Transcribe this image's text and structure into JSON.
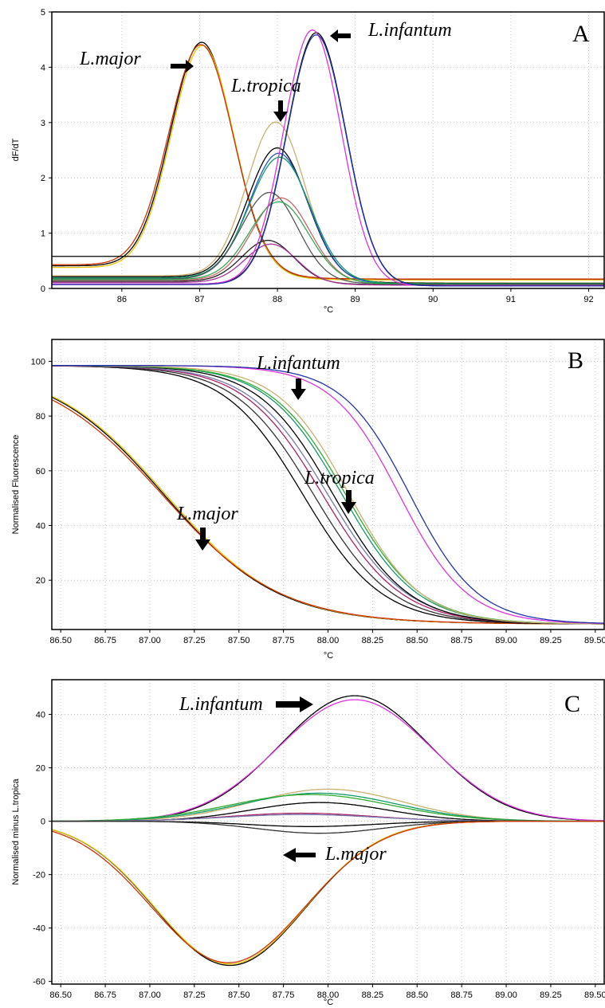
{
  "chart_data": [
    {
      "panel": "A",
      "type": "line",
      "panel_label": "A",
      "xlabel": "°C",
      "ylabel": "dF/dT",
      "xlim": [
        85.1,
        92.2
      ],
      "ylim": [
        0,
        5
      ],
      "xticks": [
        86,
        87,
        88,
        89,
        90,
        91,
        92
      ],
      "yticks": [
        0,
        1,
        2,
        3,
        4,
        5
      ],
      "grid": true,
      "threshold": 0.58,
      "series": [
        {
          "group": "major",
          "color": "#000000",
          "peak": 87.03,
          "height": 4.08,
          "sd": 0.4,
          "baseline": 0.38
        },
        {
          "group": "major",
          "color": "#e6c200",
          "peak": 87.04,
          "height": 4.05,
          "sd": 0.4,
          "baseline": 0.35
        },
        {
          "group": "major",
          "color": "#cc3300",
          "peak": 87.02,
          "height": 4.02,
          "sd": 0.41,
          "baseline": 0.4
        },
        {
          "group": "tropica",
          "color": "#c8b070",
          "peak": 87.98,
          "height": 2.8,
          "sd": 0.37,
          "baseline": 0.2
        },
        {
          "group": "tropica",
          "color": "#000000",
          "peak": 88.0,
          "height": 2.35,
          "sd": 0.38,
          "baseline": 0.18
        },
        {
          "group": "tropica",
          "color": "#2255cc",
          "peak": 88.02,
          "height": 2.28,
          "sd": 0.38,
          "baseline": 0.15
        },
        {
          "group": "tropica",
          "color": "#119966",
          "peak": 88.03,
          "height": 2.2,
          "sd": 0.39,
          "baseline": 0.16
        },
        {
          "group": "tropica",
          "color": "#555555",
          "peak": 87.9,
          "height": 1.58,
          "sd": 0.36,
          "baseline": 0.14
        },
        {
          "group": "tropica",
          "color": "#cc6666",
          "peak": 88.05,
          "height": 1.5,
          "sd": 0.37,
          "baseline": 0.12
        },
        {
          "group": "tropica",
          "color": "#33aa55",
          "peak": 88.02,
          "height": 1.42,
          "sd": 0.38,
          "baseline": 0.13
        },
        {
          "group": "tropica",
          "color": "#222222",
          "peak": 87.88,
          "height": 0.75,
          "sd": 0.33,
          "baseline": 0.1
        },
        {
          "group": "tropica",
          "color": "#aa3399",
          "peak": 87.92,
          "height": 0.7,
          "sd": 0.33,
          "baseline": 0.08
        },
        {
          "group": "infantum",
          "color": "#000000",
          "peak": 88.5,
          "height": 4.55,
          "sd": 0.38,
          "baseline": 0.05
        },
        {
          "group": "infantum",
          "color": "#dd33dd",
          "peak": 88.45,
          "height": 4.6,
          "sd": 0.37,
          "baseline": 0.05
        },
        {
          "group": "infantum",
          "color": "#2233aa",
          "peak": 88.5,
          "height": 4.52,
          "sd": 0.38,
          "baseline": 0.04
        }
      ],
      "annotations": [
        {
          "text": "L.major",
          "target": [
            87.0,
            4.08
          ]
        },
        {
          "text": "L.tropica",
          "target": [
            87.97,
            2.95
          ]
        },
        {
          "text": "L.infantum",
          "target": [
            88.68,
            4.6
          ]
        }
      ]
    },
    {
      "panel": "B",
      "type": "line",
      "panel_label": "B",
      "xlabel": "°C",
      "ylabel": "Normalised Fluorescence",
      "xlim": [
        86.45,
        89.55
      ],
      "ylim": [
        2,
        108
      ],
      "xticks": [
        86.5,
        86.75,
        87.0,
        87.25,
        87.5,
        87.75,
        88.0,
        88.25,
        88.5,
        88.75,
        89.0,
        89.25,
        89.5
      ],
      "yticks": [
        20,
        40,
        60,
        80,
        100
      ],
      "grid": true,
      "series": [
        {
          "group": "major",
          "color": "#000000",
          "mid": 87.08,
          "k": 0.32
        },
        {
          "group": "major",
          "color": "#e6c200",
          "mid": 87.09,
          "k": 0.32
        },
        {
          "group": "major",
          "color": "#cc3300",
          "mid": 87.07,
          "k": 0.33
        },
        {
          "group": "tropica",
          "color": "#000000",
          "mid": 87.86,
          "k": 0.22
        },
        {
          "group": "tropica",
          "color": "#333333",
          "mid": 87.92,
          "k": 0.22
        },
        {
          "group": "tropica",
          "color": "#aa2266",
          "mid": 87.97,
          "k": 0.22
        },
        {
          "group": "tropica",
          "color": "#7777aa",
          "mid": 88.0,
          "k": 0.22
        },
        {
          "group": "tropica",
          "color": "#000000",
          "mid": 88.03,
          "k": 0.21
        },
        {
          "group": "tropica",
          "color": "#119966",
          "mid": 88.08,
          "k": 0.21
        },
        {
          "group": "tropica",
          "color": "#33aa33",
          "mid": 88.1,
          "k": 0.21
        },
        {
          "group": "tropica",
          "color": "#c8b070",
          "mid": 88.12,
          "k": 0.2
        },
        {
          "group": "infantum",
          "color": "#dd33dd",
          "mid": 88.4,
          "k": 0.19
        },
        {
          "group": "infantum",
          "color": "#2233aa",
          "mid": 88.46,
          "k": 0.19
        }
      ],
      "annotations": [
        {
          "text": "L.infantum",
          "target": [
            87.83,
            85
          ]
        },
        {
          "text": "L.tropica",
          "target": [
            88.1,
            40
          ]
        },
        {
          "text": "L.major",
          "target": [
            87.28,
            32
          ]
        }
      ]
    },
    {
      "panel": "C",
      "type": "line",
      "panel_label": "C",
      "xlabel": "°C",
      "ylabel": "Normalised minus L.tropica",
      "xlim": [
        86.45,
        89.55
      ],
      "ylim": [
        -61,
        53
      ],
      "xticks": [
        86.5,
        86.75,
        87.0,
        87.25,
        87.5,
        87.75,
        88.0,
        88.25,
        88.5,
        88.75,
        89.0,
        89.25,
        89.5
      ],
      "yticks": [
        -60,
        -40,
        -20,
        0,
        20,
        40
      ],
      "grid": true,
      "series": [
        {
          "group": "infantum",
          "color": "#000000",
          "peak": 88.15,
          "height": 47,
          "sd": 0.42
        },
        {
          "group": "infantum",
          "color": "#dd33dd",
          "peak": 88.15,
          "height": 45.5,
          "sd": 0.43
        },
        {
          "group": "tropica",
          "color": "#c8b070",
          "peak": 88.0,
          "height": 12,
          "sd": 0.42
        },
        {
          "group": "tropica",
          "color": "#119966",
          "peak": 87.95,
          "height": 10.5,
          "sd": 0.44
        },
        {
          "group": "tropica",
          "color": "#33aa33",
          "peak": 87.9,
          "height": 10,
          "sd": 0.45
        },
        {
          "group": "tropica",
          "color": "#000000",
          "peak": 87.95,
          "height": 7,
          "sd": 0.38
        },
        {
          "group": "tropica",
          "color": "#aa2266",
          "peak": 87.85,
          "height": 3,
          "sd": 0.4
        },
        {
          "group": "tropica",
          "color": "#7777aa",
          "peak": 87.85,
          "height": 2.5,
          "sd": 0.42
        },
        {
          "group": "tropica",
          "color": "#000000",
          "peak": 87.9,
          "height": -2,
          "sd": 0.35
        },
        {
          "group": "tropica",
          "color": "#333333",
          "peak": 87.95,
          "height": -4.5,
          "sd": 0.35
        },
        {
          "group": "major",
          "color": "#000000",
          "peak": 87.45,
          "height": -54,
          "sd": 0.42
        },
        {
          "group": "major",
          "color": "#e6c200",
          "peak": 87.45,
          "height": -53.5,
          "sd": 0.42
        },
        {
          "group": "major",
          "color": "#cc3300",
          "peak": 87.44,
          "height": -53,
          "sd": 0.43
        }
      ],
      "annotations": [
        {
          "text": "L.infantum",
          "target": [
            88.0,
            46
          ]
        },
        {
          "text": "L.major",
          "target": [
            87.75,
            -47
          ]
        }
      ]
    }
  ]
}
